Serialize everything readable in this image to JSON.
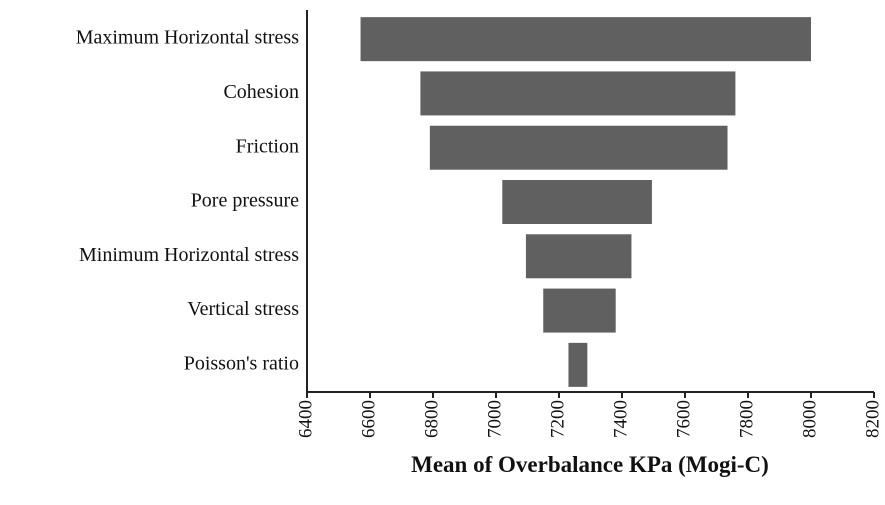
{
  "chart_data": {
    "type": "tornado",
    "xlabel": "Mean of Overbalance KPa (Mogi-C)",
    "categories": [
      "Maximum Horizontal stress",
      "Cohesion",
      "Friction",
      "Pore pressure",
      "Minimum Horizontal stress",
      "Vertical stress",
      "Poisson's ratio"
    ],
    "low": [
      6570,
      6760,
      6790,
      7020,
      7095,
      7150,
      7230
    ],
    "high": [
      8000,
      7760,
      7735,
      7495,
      7430,
      7380,
      7290
    ],
    "color": "#606060",
    "xlim": [
      6400,
      8200
    ],
    "xticks": [
      6400,
      6600,
      6800,
      7000,
      7200,
      7400,
      7600,
      7800,
      8000,
      8200
    ]
  }
}
